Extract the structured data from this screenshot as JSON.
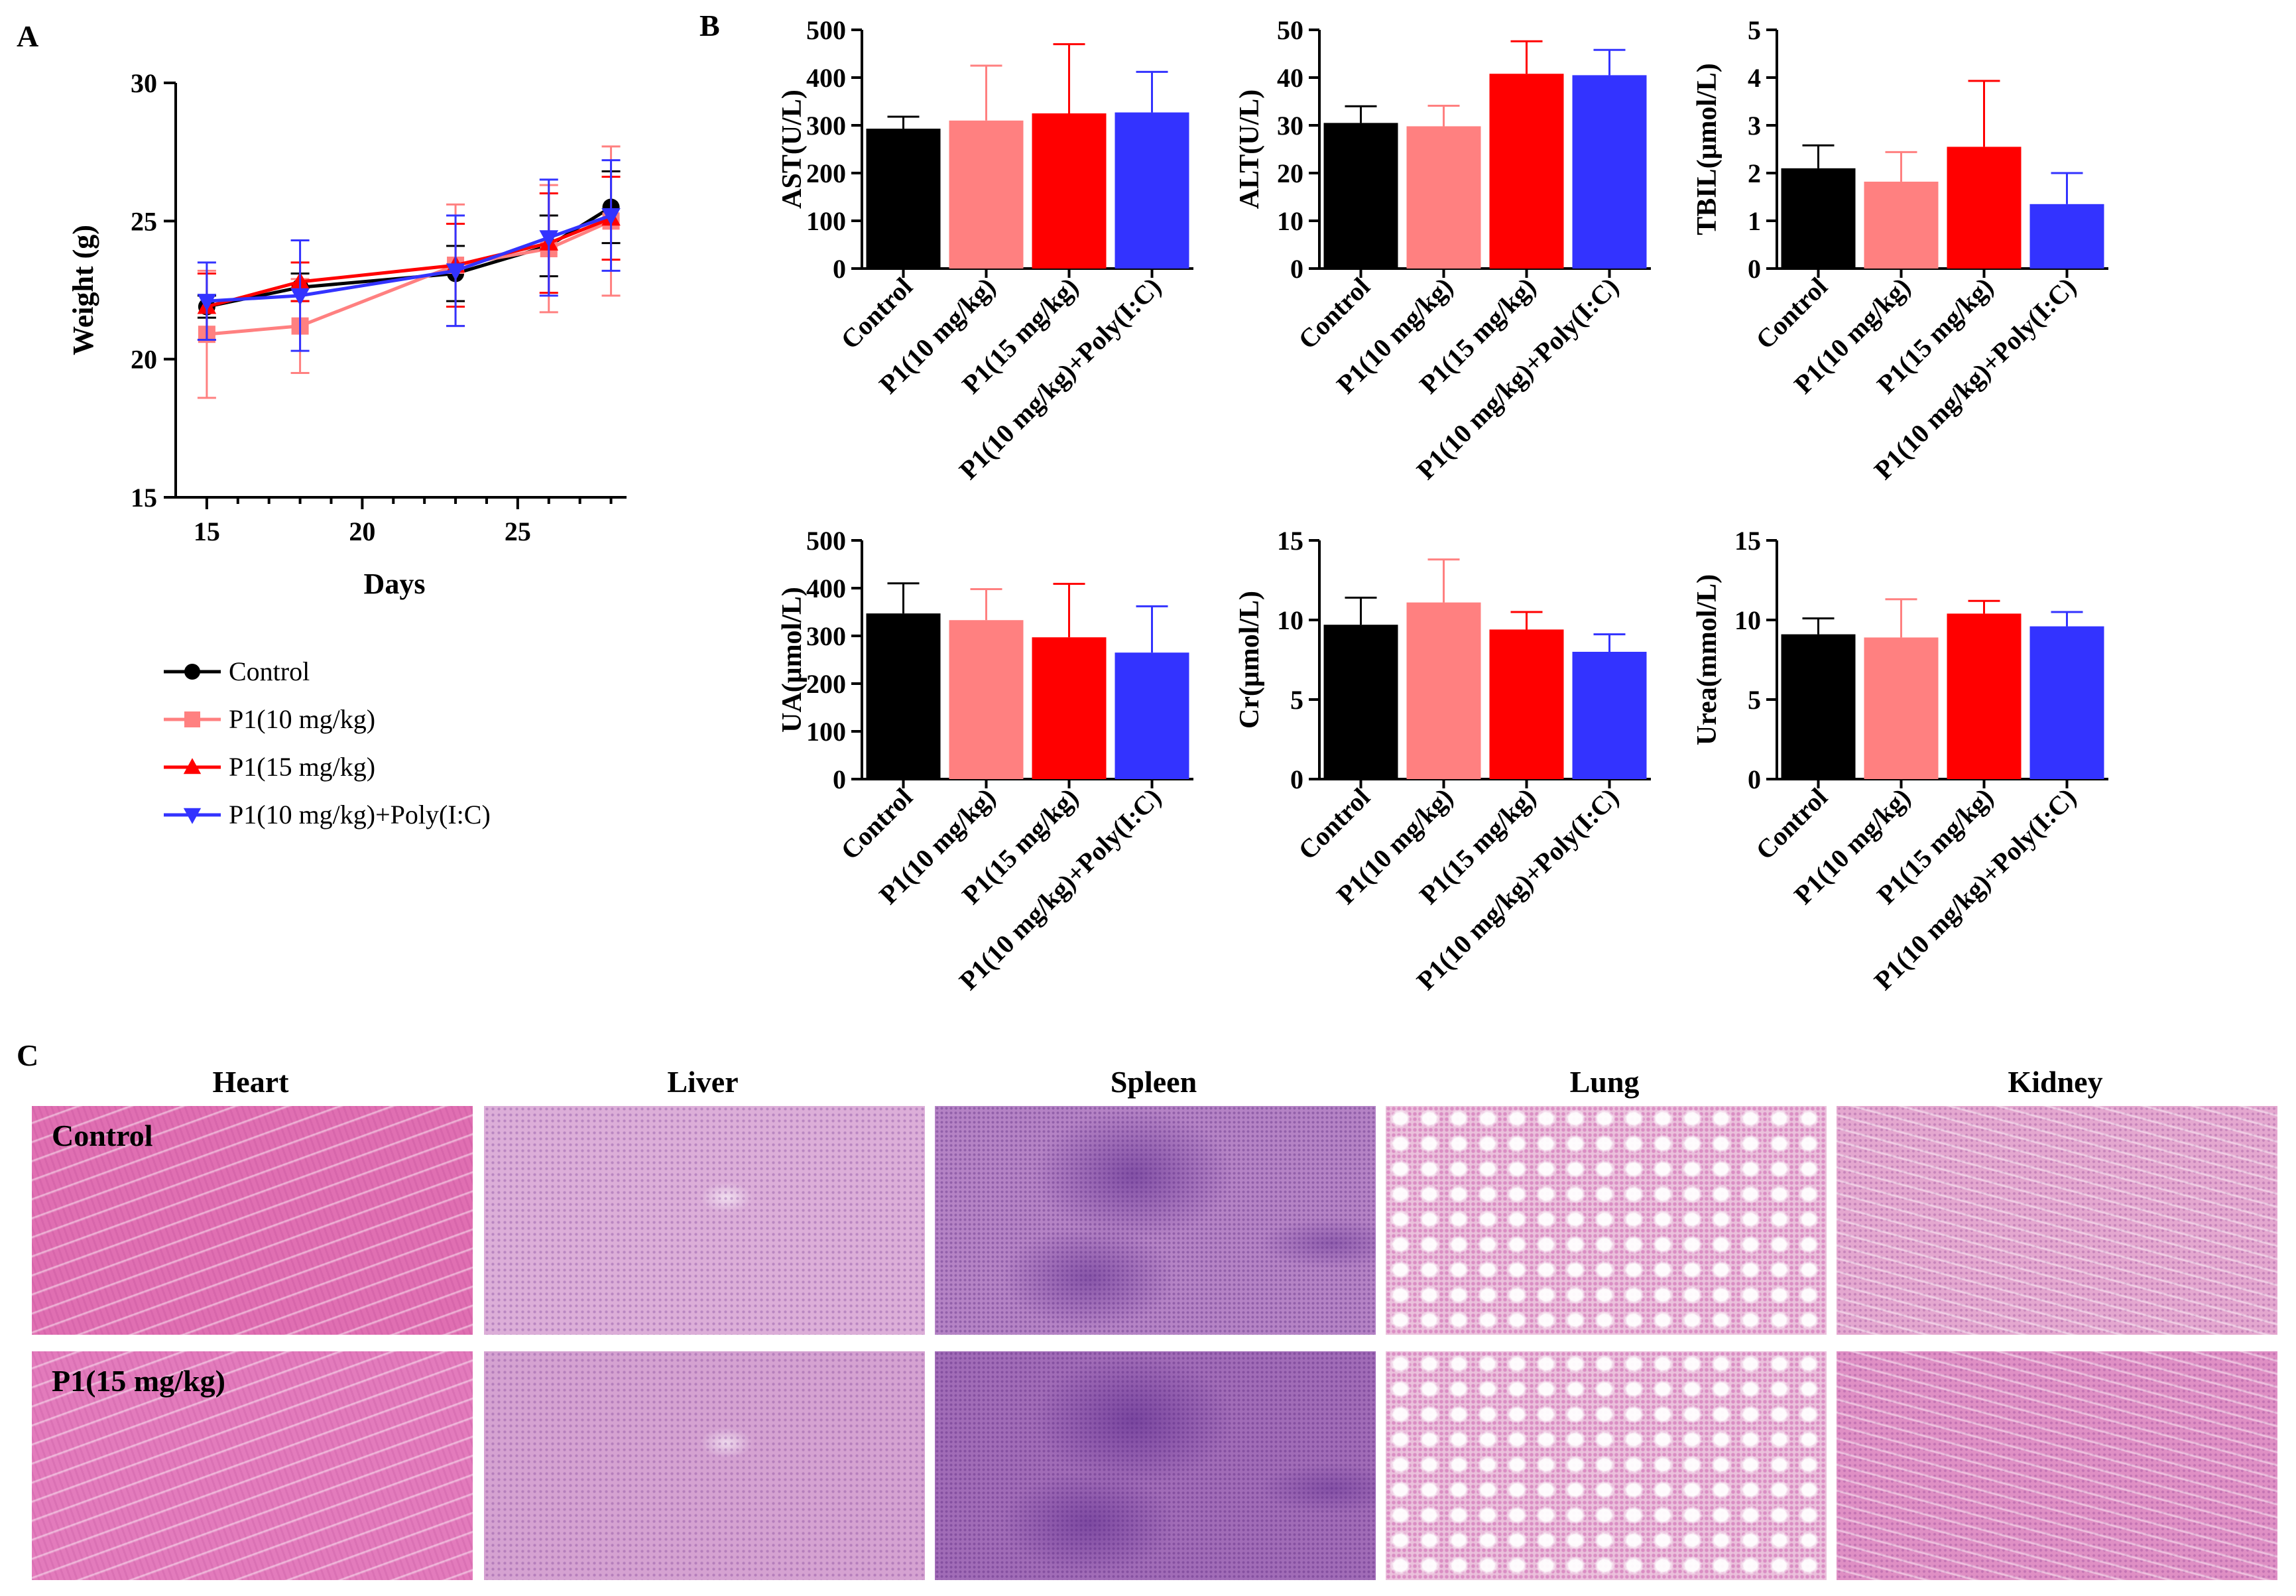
{
  "panels": {
    "a": "A",
    "b": "B",
    "c": "C"
  },
  "colors": {
    "control": "#000000",
    "p1_10": "#ff8080",
    "p1_15": "#ff0000",
    "poly": "#3333ff",
    "axis": "#000000"
  },
  "chart_data": [
    {
      "id": "weight",
      "type": "line",
      "title": "",
      "xlabel": "Days",
      "ylabel": "Weight (g)",
      "xlim": [
        14,
        28.5
      ],
      "ylim": [
        15,
        30
      ],
      "xticks": [
        15,
        20,
        25
      ],
      "yticks": [
        15,
        20,
        25,
        30
      ],
      "series": [
        {
          "name": "Control",
          "color": "#000000",
          "marker": "circle",
          "x": [
            15,
            18,
            23,
            26,
            28
          ],
          "y": [
            21.9,
            22.6,
            23.1,
            24.1,
            25.5
          ],
          "err": [
            0.4,
            0.5,
            1.0,
            1.1,
            1.3
          ]
        },
        {
          "name": "P1(10 mg/kg)",
          "color": "#ff8080",
          "marker": "square",
          "x": [
            15,
            18,
            23,
            26,
            28
          ],
          "y": [
            20.9,
            21.2,
            23.4,
            24.0,
            25.0
          ],
          "err": [
            2.3,
            1.7,
            2.2,
            2.3,
            2.7
          ]
        },
        {
          "name": "P1(15 mg/kg)",
          "color": "#ff0000",
          "marker": "triangle-up",
          "x": [
            15,
            18,
            23,
            26,
            28
          ],
          "y": [
            21.9,
            22.8,
            23.4,
            24.2,
            25.1
          ],
          "err": [
            1.2,
            0.7,
            1.5,
            1.8,
            1.5
          ]
        },
        {
          "name": "P1(10 mg/kg)+Poly(I:C)",
          "color": "#3333ff",
          "marker": "triangle-down",
          "x": [
            15,
            18,
            23,
            26,
            28
          ],
          "y": [
            22.1,
            22.3,
            23.2,
            24.4,
            25.2
          ],
          "err": [
            1.4,
            2.0,
            2.0,
            2.1,
            2.0
          ]
        }
      ],
      "legend": "below"
    },
    {
      "id": "ast",
      "type": "bar",
      "ylabel": "AST(U/L)",
      "ylim": [
        0,
        500
      ],
      "yticks": [
        0,
        100,
        200,
        300,
        400,
        500
      ],
      "categories": [
        "Control",
        "P1(10 mg/kg)",
        "P1(15 mg/kg)",
        "P1(10 mg/kg)+Poly(I:C)"
      ],
      "values": [
        293,
        310,
        325,
        327
      ],
      "err": [
        25,
        115,
        145,
        85
      ]
    },
    {
      "id": "alt",
      "type": "bar",
      "ylabel": "ALT(U/L)",
      "ylim": [
        0,
        50
      ],
      "yticks": [
        0,
        10,
        20,
        30,
        40,
        50
      ],
      "categories": [
        "Control",
        "P1(10 mg/kg)",
        "P1(15 mg/kg)",
        "P1(10 mg/kg)+Poly(I:C)"
      ],
      "values": [
        30.5,
        29.8,
        40.8,
        40.5
      ],
      "err": [
        3.5,
        4.3,
        6.8,
        5.3
      ]
    },
    {
      "id": "tbil",
      "type": "bar",
      "ylabel": "TBIL(μmol/L)",
      "ylim": [
        0,
        5
      ],
      "yticks": [
        0,
        1,
        2,
        3,
        4,
        5
      ],
      "categories": [
        "Control",
        "P1(10 mg/kg)",
        "P1(15 mg/kg)",
        "P1(10 mg/kg)+Poly(I:C)"
      ],
      "values": [
        2.1,
        1.82,
        2.55,
        1.35
      ],
      "err": [
        0.48,
        0.62,
        1.38,
        0.65
      ]
    },
    {
      "id": "ua",
      "type": "bar",
      "ylabel": "UA(μmol/L)",
      "ylim": [
        0,
        500
      ],
      "yticks": [
        0,
        100,
        200,
        300,
        400,
        500
      ],
      "categories": [
        "Control",
        "P1(10 mg/kg)",
        "P1(15 mg/kg)",
        "P1(10 mg/kg)+Poly(I:C)"
      ],
      "values": [
        347,
        333,
        297,
        265
      ],
      "err": [
        63,
        65,
        112,
        97
      ]
    },
    {
      "id": "cr",
      "type": "bar",
      "ylabel": "Cr(μmol/L)",
      "ylim": [
        0,
        15
      ],
      "yticks": [
        0,
        5,
        10,
        15
      ],
      "categories": [
        "Control",
        "P1(10 mg/kg)",
        "P1(15 mg/kg)",
        "P1(10 mg/kg)+Poly(I:C)"
      ],
      "values": [
        9.7,
        11.1,
        9.4,
        8.0
      ],
      "err": [
        1.7,
        2.7,
        1.1,
        1.1
      ]
    },
    {
      "id": "urea",
      "type": "bar",
      "ylabel": "Urea(mmol/L)",
      "ylim": [
        0,
        15
      ],
      "yticks": [
        0,
        5,
        10,
        15
      ],
      "categories": [
        "Control",
        "P1(10 mg/kg)",
        "P1(15 mg/kg)",
        "P1(10 mg/kg)+Poly(I:C)"
      ],
      "values": [
        9.1,
        8.9,
        10.4,
        9.6
      ],
      "err": [
        1.0,
        2.4,
        0.8,
        0.9
      ]
    }
  ],
  "bar_colors": [
    "#000000",
    "#ff8080",
    "#ff0000",
    "#3333ff"
  ],
  "legend": [
    {
      "label": "Control",
      "color": "#000000",
      "marker": "circle"
    },
    {
      "label": "P1(10 mg/kg)",
      "color": "#ff8080",
      "marker": "square"
    },
    {
      "label": "P1(15 mg/kg)",
      "color": "#ff0000",
      "marker": "triangle-up"
    },
    {
      "label": "P1(10 mg/kg)+Poly(I:C)",
      "color": "#3333ff",
      "marker": "triangle-down"
    }
  ],
  "histology": {
    "organs": [
      "Heart",
      "Liver",
      "Spleen",
      "Lung",
      "Kidney"
    ],
    "rows": [
      "Control",
      "P1(15 mg/kg)"
    ],
    "tints": {
      "Heart": [
        "#e06fb2",
        "#e37bbc"
      ],
      "Liver": [
        "#dcaed8",
        "#d5a2d1"
      ],
      "Spleen": [
        "#b583c5",
        "#a16cb7"
      ],
      "Lung": [
        "#ebc1dc",
        "#ebc1dc"
      ],
      "Kidney": [
        "#e4a7cf",
        "#df8fc4"
      ]
    }
  }
}
